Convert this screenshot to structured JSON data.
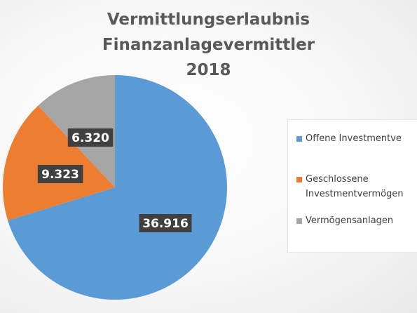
{
  "chart_data": {
    "type": "pie",
    "title": "Vermittlungserlaubnis Finanzanlagevermittler 2018",
    "title_lines": [
      "Vermittlungserlaubnis Finanzanlagevermittler",
      "2018"
    ],
    "slices": [
      {
        "name": "Offene Investmentvermögen",
        "legend_lines": [
          "Offene Investmentve"
        ],
        "value": 36916,
        "label": "36.916",
        "color": "#5b9bd5"
      },
      {
        "name": "Geschlossene Investmentvermögen",
        "legend_lines": [
          "Geschlossene",
          "Investmentvermögen"
        ],
        "value": 9323,
        "label": "9.323",
        "color": "#ed7d31"
      },
      {
        "name": "Vermögensanlagen",
        "legend_lines": [
          "Vermögensanlagen"
        ],
        "value": 6320,
        "label": "6.320",
        "color": "#a5a5a5"
      }
    ],
    "legend_position": "right"
  }
}
